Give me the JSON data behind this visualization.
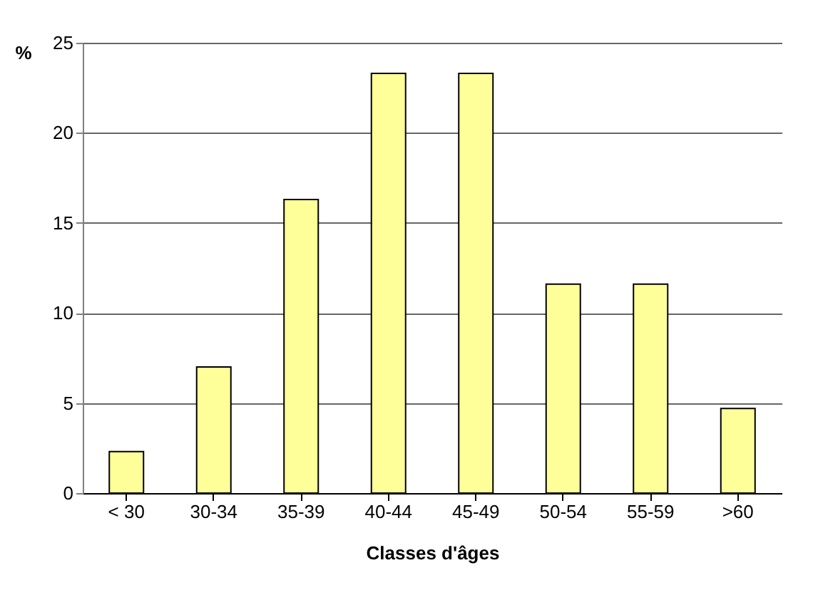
{
  "chart_data": {
    "type": "bar",
    "xlabel": "Classes d'âges",
    "ylabel": "%",
    "categories": [
      "< 30",
      "30-34",
      "35-39",
      "40-44",
      "45-49",
      "50-54",
      "55-59",
      ">60"
    ],
    "values": [
      2.3,
      7.0,
      16.3,
      23.3,
      23.3,
      11.6,
      11.6,
      4.7
    ],
    "color": "#ffff99",
    "ylim": [
      0,
      25
    ],
    "yticks": [
      0,
      5,
      10,
      15,
      20,
      25
    ],
    "grid": "y"
  }
}
